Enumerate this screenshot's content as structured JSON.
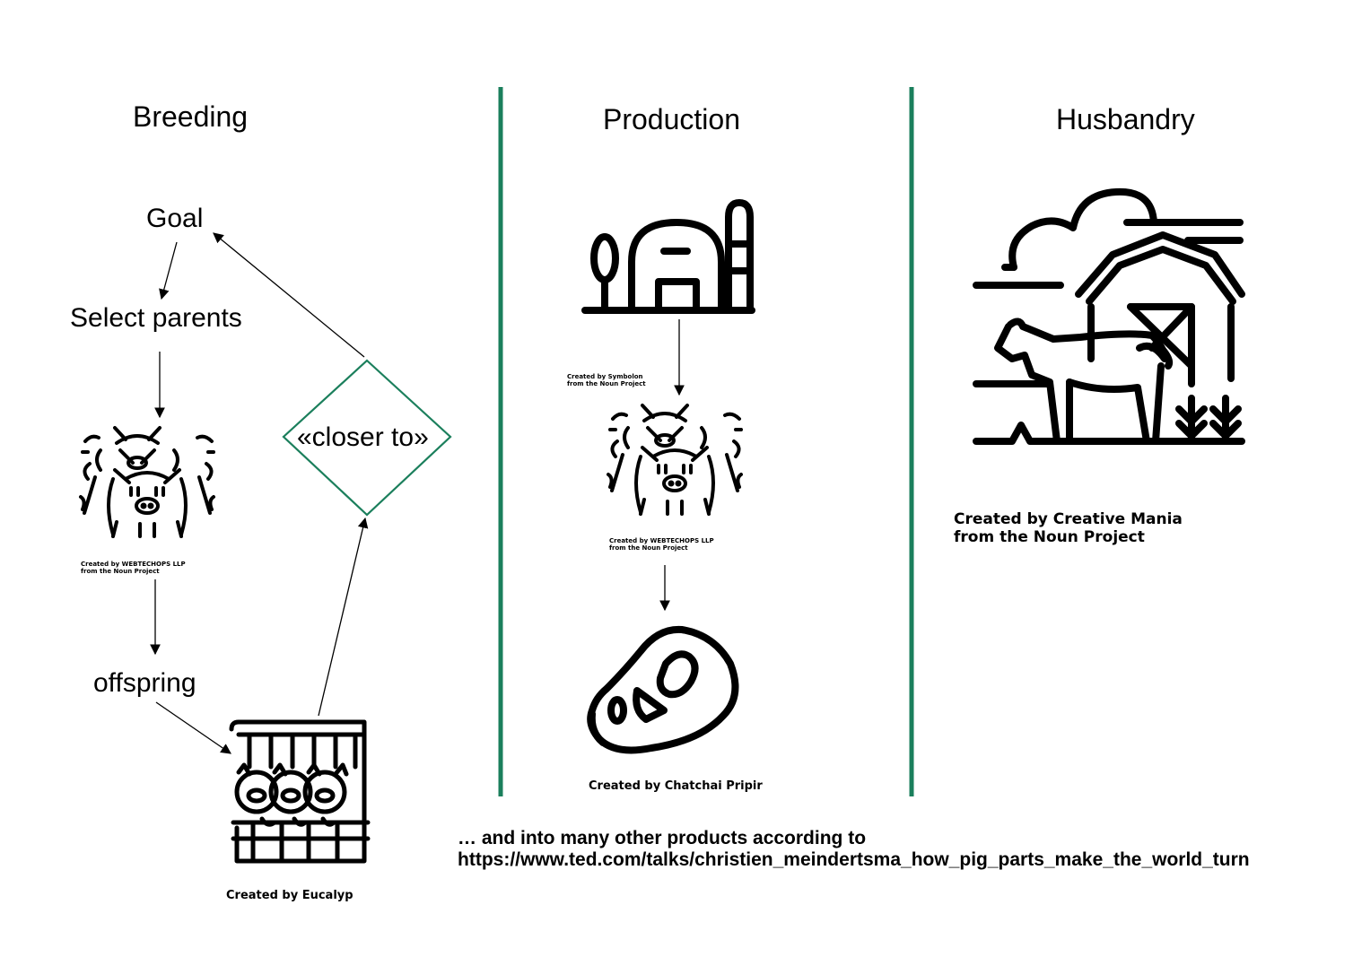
{
  "columns": {
    "breeding": "Breeding",
    "production": "Production",
    "husbandry": "Husbandry"
  },
  "breeding": {
    "goal": "Goal",
    "select_parents": "Select parents",
    "offspring": "offspring",
    "decision": "«closer to»",
    "credit_pigs": "Created by WEBTECHOPS LLP\nfrom the Noun Project",
    "credit_pen": "Created by Eucalyp"
  },
  "production": {
    "credit_farm": "Created by Symbolon\nfrom the Noun Project",
    "credit_pigs": "Created by WEBTECHOPS LLP\nfrom the Noun Project",
    "credit_meat": "Created by Chatchai Pripir"
  },
  "husbandry": {
    "credit_barn": "Created by Creative Mania\nfrom the Noun Project"
  },
  "footer": {
    "line1": "… and into many other products according to",
    "line2": "https://www.ted.com/talks/christien_meindertsma_how_pig_parts_make_the_world_turn"
  },
  "colors": {
    "divider": "#1b7f5c",
    "diamond": "#1b7f5c",
    "ink": "#000000"
  },
  "icons": [
    "pigs-group-icon",
    "pigs-pen-icon",
    "farm-icon",
    "meat-steak-icon",
    "barn-cow-icon"
  ]
}
